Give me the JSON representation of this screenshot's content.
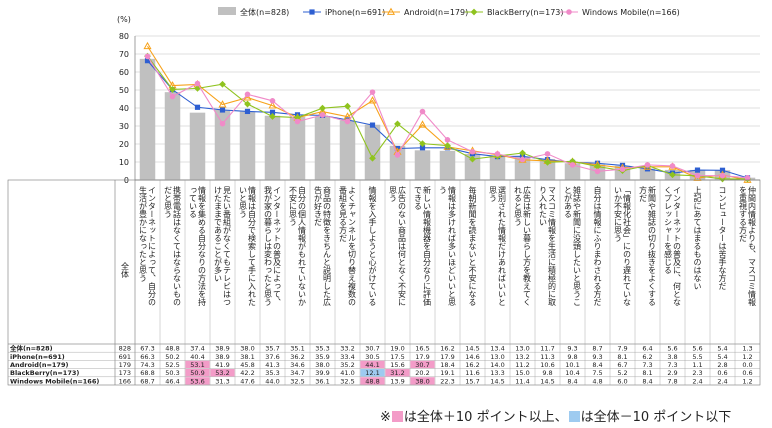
{
  "chart_data": {
    "type": "bar",
    "y_unit": "(%)",
    "ylim": [
      0,
      80
    ],
    "yticks": [
      0,
      10,
      20,
      30,
      40,
      50,
      60,
      70,
      80
    ],
    "grid": true,
    "legend_position": "top",
    "categories": [
      "インターネットによって、自分の生活が豊かになったと思う",
      "携帯電話はなくてはならないものだと思う",
      "情報を集める自分なりの方法を持っている",
      "見たい番組がなくてもテレビはつけたままであることが多い",
      "情報は自分で検索して手に入れたいと思う",
      "インターネットの普及によって、我が家の暮らしは変わったと思う",
      "自分の個人情報がもれていないか不安に思う",
      "商品の特徴をきちんと説明した広告が好きだ",
      "よくチャンネルを切り替え複数の番組を見る方だ",
      "情報を入手しようと心がけている",
      "広告のない商品は何となく不安に思う",
      "新しい情報機器を自分なりに評価できる",
      "情報は多ければ多いほどいいと思う",
      "毎朝新聞を読まないと不安になる",
      "選別された情報だけあればいいと思う",
      "広告は新しい暮らし方を教えてくれると思う",
      "マスコミ情報を生活に積極的に取り入れたい",
      "雑誌や新聞に没頭したいと思うことがある",
      "自分は情報にふりまわされる方だ",
      "「情報化社会」にのり遅れていないか不安に思う",
      "新聞や雑誌の切り抜きをよくする方だ",
      "インターネットの普及に、何となくプレッシャーを感じる",
      "上記にあてはまるものはない",
      "コンピューターは苦手な方だ",
      "仲間内情報よりも、マスコミ情報を重視する方だ"
    ],
    "series": [
      {
        "name": "全体",
        "n": 828,
        "color": "#c0c0c0",
        "values": [
          67.3,
          48.8,
          37.4,
          38.9,
          38.0,
          35.7,
          35.1,
          35.3,
          33.2,
          30.7,
          19.0,
          16.5,
          16.2,
          14.5,
          13.4,
          13.0,
          11.7,
          9.3,
          8.7,
          7.9,
          6.4,
          5.6,
          5.6,
          5.4,
          1.3
        ]
      },
      {
        "name": "iPhone",
        "n": 691,
        "color": "#2e5fd1",
        "values": [
          66.3,
          50.2,
          40.4,
          38.9,
          38.1,
          37.6,
          36.2,
          35.9,
          33.4,
          30.5,
          17.5,
          17.9,
          17.9,
          14.6,
          13.0,
          13.2,
          11.3,
          9.8,
          9.3,
          8.1,
          6.2,
          3.8,
          5.5,
          5.4,
          1.2
        ]
      },
      {
        "name": "Android",
        "n": 179,
        "color": "#f7a21b",
        "values": [
          74.3,
          52.5,
          53.1,
          41.9,
          45.8,
          41.3,
          34.6,
          38.0,
          35.2,
          44.1,
          15.6,
          30.7,
          18.4,
          16.2,
          14.0,
          11.2,
          10.6,
          10.1,
          8.4,
          6.7,
          7.3,
          7.3,
          1.1,
          2.8,
          0.0
        ]
      },
      {
        "name": "BlackBerry",
        "n": 173,
        "color": "#8fc31f",
        "values": [
          68.8,
          50.3,
          50.9,
          53.2,
          42.2,
          35.3,
          34.7,
          39.9,
          41.0,
          12.1,
          31.2,
          20.2,
          19.1,
          11.6,
          13.3,
          15.0,
          9.8,
          10.4,
          7.5,
          5.2,
          8.1,
          2.9,
          2.3,
          0.6,
          0.6
        ]
      },
      {
        "name": "Windows Mobile",
        "n": 166,
        "color": "#f08ac8",
        "values": [
          68.7,
          46.4,
          53.6,
          31.3,
          47.6,
          44.0,
          32.5,
          36.1,
          32.5,
          48.8,
          13.9,
          38.0,
          22.3,
          15.7,
          14.5,
          11.4,
          14.5,
          8.4,
          4.8,
          6.0,
          8.4,
          7.8,
          2.4,
          2.4,
          1.2
        ]
      }
    ],
    "highlight_legend": {
      "prefix": "※",
      "pink_text": "は全体＋10 ポイント以上、",
      "blue_text": "は全体－10 ポイント以下",
      "pink_color": "#f39cc8",
      "blue_color": "#9ecbf0"
    }
  }
}
